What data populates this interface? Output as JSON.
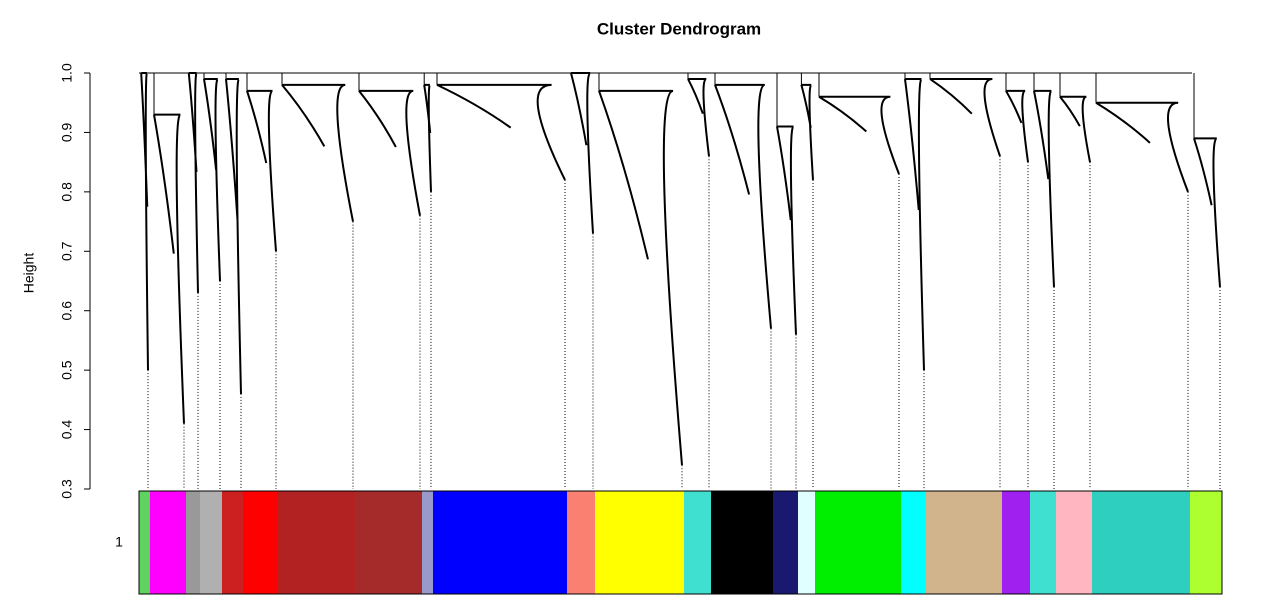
{
  "chart_data": {
    "type": "dendrogram",
    "title": "Cluster Dendrogram",
    "y_label": "Height",
    "row_label": "1",
    "ylim": [
      0.3,
      1.0
    ],
    "yticks": [
      0.3,
      0.4,
      0.5,
      0.6,
      0.7,
      0.8,
      0.9,
      {
        "value": 1.0,
        "label": "1.0"
      }
    ],
    "modules": [
      {
        "color": "#5fd35f",
        "size": 11,
        "merge": 1.0,
        "tip": 0.5
      },
      {
        "color": "#ff00ff",
        "size": 36,
        "merge": 0.93,
        "tip": 0.41
      },
      {
        "color": "#999999",
        "size": 14,
        "merge": 1.0,
        "tip": 0.63
      },
      {
        "color": "#b0b0b0",
        "size": 22,
        "merge": 0.99,
        "tip": 0.65
      },
      {
        "color": "#cc2020",
        "size": 21,
        "merge": 0.99,
        "tip": 0.46
      },
      {
        "color": "#ff0000",
        "size": 35,
        "merge": 0.97,
        "tip": 0.7
      },
      {
        "color": "#b22222",
        "size": 77,
        "merge": 0.98,
        "tip": 0.75
      },
      {
        "color": "#a52a2a",
        "size": 67,
        "merge": 0.97,
        "tip": 0.76
      },
      {
        "color": "#9999cc",
        "size": 11,
        "merge": 0.98,
        "tip": 0.8
      },
      {
        "color": "#0000ff",
        "size": 134,
        "merge": 0.98,
        "tip": 0.82
      },
      {
        "color": "#fa8072",
        "size": 28,
        "merge": 1.0,
        "tip": 0.73
      },
      {
        "color": "#ffff00",
        "size": 89,
        "merge": 0.97,
        "tip": 0.34
      },
      {
        "color": "#40e0d0",
        "size": 27,
        "merge": 0.99,
        "tip": 0.86
      },
      {
        "color": "#000000",
        "size": 62,
        "merge": 0.98,
        "tip": 0.57
      },
      {
        "color": "#191970",
        "size": 25,
        "merge": 0.91,
        "tip": 0.56
      },
      {
        "color": "#e0ffff",
        "size": 17,
        "merge": 0.98,
        "tip": 0.82
      },
      {
        "color": "#00ee00",
        "size": 86,
        "merge": 0.96,
        "tip": 0.83
      },
      {
        "color": "#00ffff",
        "size": 25,
        "merge": 0.99,
        "tip": 0.5
      },
      {
        "color": "#d2b48c",
        "size": 76,
        "merge": 0.99,
        "tip": 0.86
      },
      {
        "color": "#a020f0",
        "size": 28,
        "merge": 0.97,
        "tip": 0.85
      },
      {
        "color": "#40e0d0",
        "size": 26,
        "merge": 0.97,
        "tip": 0.64
      },
      {
        "color": "#ffb6c1",
        "size": 36,
        "merge": 0.96,
        "tip": 0.85
      },
      {
        "color": "#2ecfbf",
        "size": 98,
        "merge": 0.95,
        "tip": 0.8
      },
      {
        "color": "#adff2f",
        "size": 32,
        "merge": 0.89,
        "tip": 0.64
      }
    ]
  }
}
